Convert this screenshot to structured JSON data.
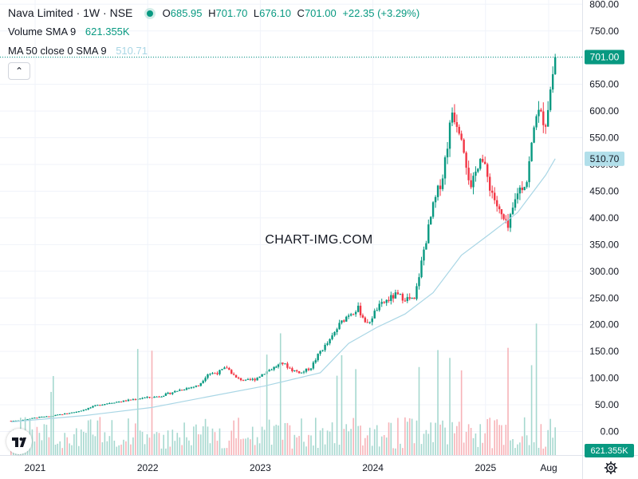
{
  "header": {
    "title": "Nava Limited · 1W · NSE",
    "ohlc": {
      "o_label": "O",
      "o": "685.95",
      "h_label": "H",
      "h": "701.70",
      "l_label": "L",
      "l": "676.10",
      "c_label": "C",
      "c": "701.00",
      "change": "+22.35 (+3.29%)"
    },
    "volume_label": "Volume SMA 9",
    "volume_value": "621.355K",
    "ma_label": "MA 50 close 0 SMA 9",
    "ma_value": "510.71"
  },
  "watermark": "CHART-IMG.COM",
  "price_tag": "701.00",
  "ma_tag": "510.70",
  "volume_tag": "621.355K",
  "colors": {
    "up": "#089981",
    "down": "#f23645",
    "ma_line": "#a9d6e5",
    "volume_up": "#a6d8cf",
    "volume_down": "#f7b3b8",
    "status_dot": "#089981",
    "ma_tag_bg": "#b2dfea",
    "price_tag_bg": "#089981"
  },
  "icons": {
    "collapse": "chevron-up-icon",
    "logo": "tradingview-logo-icon",
    "settings": "gear-icon"
  },
  "chart_data": {
    "type": "candlestick",
    "title": "Nava Limited · 1W · NSE",
    "y_ticks": [
      "800.00",
      "750.00",
      "700.00",
      "650.00",
      "600.00",
      "550.00",
      "500.00",
      "450.00",
      "400.00",
      "350.00",
      "300.00",
      "250.00",
      "200.00",
      "150.00",
      "100.00",
      "50.00",
      "0.00"
    ],
    "x_ticks": [
      "2021",
      "2022",
      "2023",
      "2024",
      "2025",
      "Aug"
    ],
    "ylim": [
      0,
      800
    ],
    "grid": true,
    "series": [
      {
        "name": "Price",
        "points": [
          {
            "date": "2020-10",
            "close": 20
          },
          {
            "date": "2020-11",
            "close": 21
          },
          {
            "date": "2020-12",
            "close": 24
          },
          {
            "date": "2021-01",
            "close": 27
          },
          {
            "date": "2021-02",
            "close": 28
          },
          {
            "date": "2021-03",
            "close": 31
          },
          {
            "date": "2021-04",
            "close": 34
          },
          {
            "date": "2021-05",
            "close": 37
          },
          {
            "date": "2021-06",
            "close": 42
          },
          {
            "date": "2021-07",
            "close": 48
          },
          {
            "date": "2021-08",
            "close": 52
          },
          {
            "date": "2021-09",
            "close": 55
          },
          {
            "date": "2021-10",
            "close": 57
          },
          {
            "date": "2021-11",
            "close": 60
          },
          {
            "date": "2021-12",
            "close": 63
          },
          {
            "date": "2022-01",
            "close": 64
          },
          {
            "date": "2022-02",
            "close": 67
          },
          {
            "date": "2022-03",
            "close": 72
          },
          {
            "date": "2022-04",
            "close": 78
          },
          {
            "date": "2022-05",
            "close": 82
          },
          {
            "date": "2022-06",
            "close": 86
          },
          {
            "date": "2022-07",
            "close": 108
          },
          {
            "date": "2022-08",
            "close": 110
          },
          {
            "date": "2022-09",
            "close": 120
          },
          {
            "date": "2022-10",
            "close": 100
          },
          {
            "date": "2022-11",
            "close": 95
          },
          {
            "date": "2022-12",
            "close": 98
          },
          {
            "date": "2023-01",
            "close": 110
          },
          {
            "date": "2023-02",
            "close": 120
          },
          {
            "date": "2023-03",
            "close": 128
          },
          {
            "date": "2023-04",
            "close": 115
          },
          {
            "date": "2023-05",
            "close": 110
          },
          {
            "date": "2023-06",
            "close": 120
          },
          {
            "date": "2023-07",
            "close": 150
          },
          {
            "date": "2023-08",
            "close": 170
          },
          {
            "date": "2023-09",
            "close": 200
          },
          {
            "date": "2023-10",
            "close": 220
          },
          {
            "date": "2023-11",
            "close": 230
          },
          {
            "date": "2023-12",
            "close": 200
          },
          {
            "date": "2024-01",
            "close": 230
          },
          {
            "date": "2024-02",
            "close": 245
          },
          {
            "date": "2024-03",
            "close": 255
          },
          {
            "date": "2024-04",
            "close": 250
          },
          {
            "date": "2024-05",
            "close": 245
          },
          {
            "date": "2024-06",
            "close": 340
          },
          {
            "date": "2024-07",
            "close": 420
          },
          {
            "date": "2024-08",
            "close": 480
          },
          {
            "date": "2024-09",
            "close": 600
          },
          {
            "date": "2024-10",
            "close": 560
          },
          {
            "date": "2024-11",
            "close": 450
          },
          {
            "date": "2024-12",
            "close": 520
          },
          {
            "date": "2025-01",
            "close": 460
          },
          {
            "date": "2025-02",
            "close": 410
          },
          {
            "date": "2025-03",
            "close": 380
          },
          {
            "date": "2025-04",
            "close": 450
          },
          {
            "date": "2025-05",
            "close": 470
          },
          {
            "date": "2025-06",
            "close": 600
          },
          {
            "date": "2025-07",
            "close": 580
          },
          {
            "date": "2025-08",
            "close": 701
          }
        ]
      },
      {
        "name": "MA 50 close 0 SMA 9",
        "points": [
          {
            "date": "2020-10",
            "value": 18
          },
          {
            "date": "2021-06",
            "value": 30
          },
          {
            "date": "2022-01",
            "value": 45
          },
          {
            "date": "2022-07",
            "value": 65
          },
          {
            "date": "2023-01",
            "value": 85
          },
          {
            "date": "2023-07",
            "value": 110
          },
          {
            "date": "2023-10",
            "value": 165
          },
          {
            "date": "2024-01",
            "value": 195
          },
          {
            "date": "2024-04",
            "value": 220
          },
          {
            "date": "2024-07",
            "value": 260
          },
          {
            "date": "2024-10",
            "value": 330
          },
          {
            "date": "2025-01",
            "value": 370
          },
          {
            "date": "2025-04",
            "value": 410
          },
          {
            "date": "2025-07",
            "value": 480
          },
          {
            "date": "2025-08",
            "value": 510.7
          }
        ]
      }
    ]
  }
}
